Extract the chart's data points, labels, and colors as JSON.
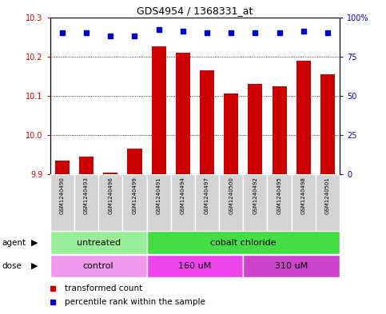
{
  "title": "GDS4954 / 1368331_at",
  "samples": [
    "GSM1240490",
    "GSM1240493",
    "GSM1240496",
    "GSM1240499",
    "GSM1240491",
    "GSM1240494",
    "GSM1240497",
    "GSM1240500",
    "GSM1240492",
    "GSM1240495",
    "GSM1240498",
    "GSM1240501"
  ],
  "bar_values": [
    9.935,
    9.945,
    9.905,
    9.965,
    10.225,
    10.21,
    10.165,
    10.105,
    10.13,
    10.125,
    10.19,
    10.155
  ],
  "percentile_values": [
    90,
    90,
    88,
    88,
    92,
    91,
    90,
    90,
    90,
    90,
    91,
    90
  ],
  "bar_color": "#cc0000",
  "dot_color": "#0000cc",
  "ylim_left": [
    9.9,
    10.3
  ],
  "ylim_right": [
    0,
    100
  ],
  "yticks_left": [
    9.9,
    10.0,
    10.1,
    10.2,
    10.3
  ],
  "yticks_right": [
    0,
    25,
    50,
    75,
    100
  ],
  "ytick_labels_right": [
    "0",
    "25",
    "50",
    "75",
    "100%"
  ],
  "agent_groups": [
    {
      "label": "untreated",
      "start": 0,
      "end": 4,
      "color": "#99ee99"
    },
    {
      "label": "cobalt chloride",
      "start": 4,
      "end": 12,
      "color": "#44dd44"
    }
  ],
  "dose_groups": [
    {
      "label": "control",
      "start": 0,
      "end": 4,
      "color": "#ee99ee"
    },
    {
      "label": "160 uM",
      "start": 4,
      "end": 8,
      "color": "#ee44ee"
    },
    {
      "label": "310 uM",
      "start": 8,
      "end": 12,
      "color": "#cc44cc"
    }
  ],
  "legend_red_label": "transformed count",
  "legend_blue_label": "percentile rank within the sample",
  "bar_bottom": 9.9,
  "cell_color": "#d3d3d3",
  "fig_width": 4.83,
  "fig_height": 3.93,
  "dpi": 100
}
